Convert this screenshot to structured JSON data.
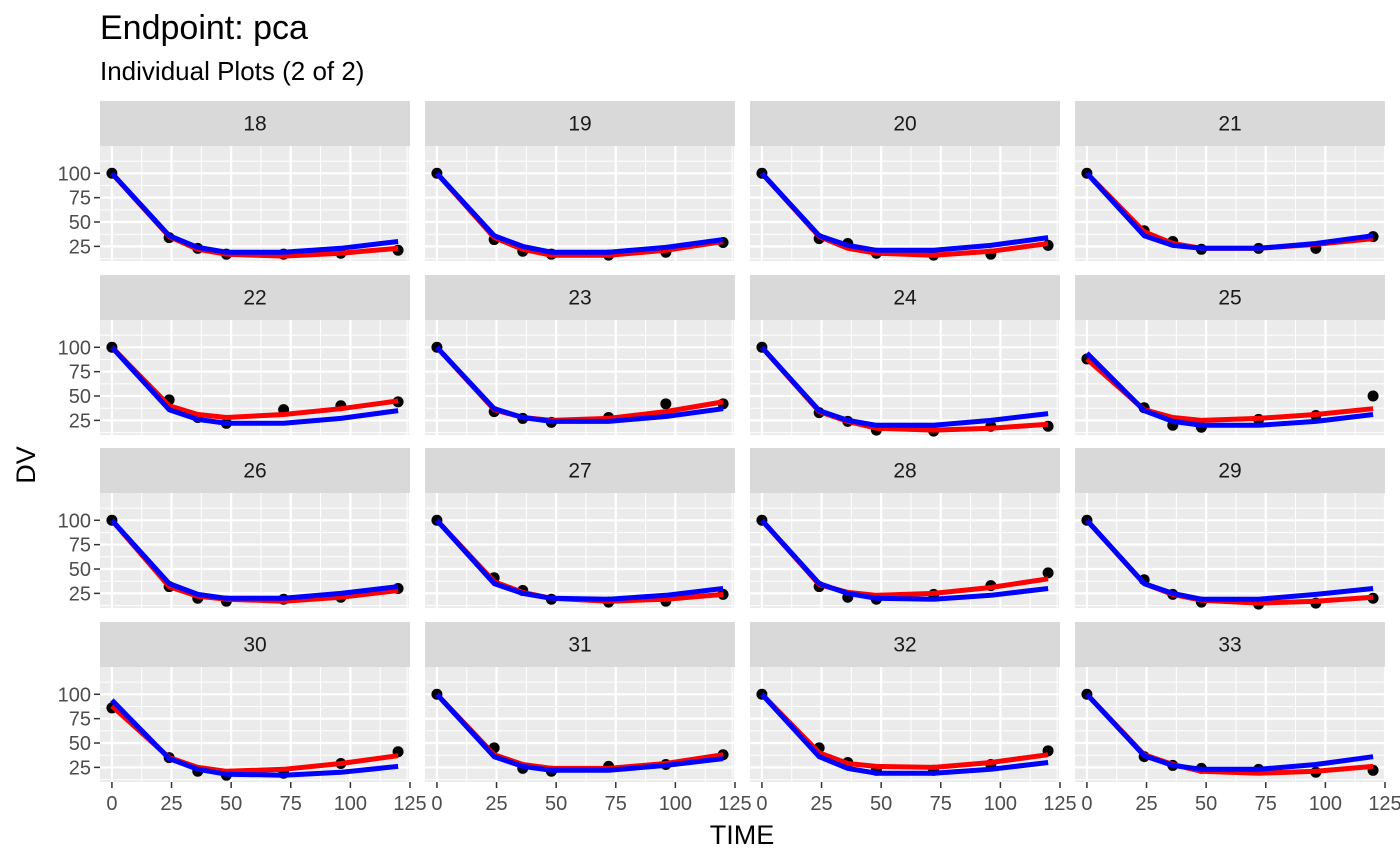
{
  "chart_data": {
    "type": "line",
    "title": "Endpoint:  pca",
    "subtitle": "Individual Plots (2 of 2)",
    "xlabel": "TIME",
    "ylabel": "DV",
    "xlim": [
      -5,
      125
    ],
    "ylim": [
      10,
      128
    ],
    "x_ticks": [
      0,
      25,
      50,
      75,
      100,
      125
    ],
    "y_ticks": [
      25,
      50,
      75,
      100
    ],
    "facets": [
      {
        "id": "18",
        "time": [
          0,
          24,
          36,
          48,
          72,
          96,
          120
        ],
        "dv": [
          100,
          34,
          23,
          17,
          17,
          18,
          21
        ],
        "pred": [
          100,
          35,
          22,
          17,
          15,
          18,
          23
        ],
        "ipred": [
          100,
          36,
          24,
          19,
          19,
          23,
          30
        ]
      },
      {
        "id": "19",
        "time": [
          0,
          24,
          36,
          48,
          72,
          96,
          120
        ],
        "dv": [
          100,
          32,
          20,
          17,
          16,
          19,
          29
        ],
        "pred": [
          100,
          34,
          22,
          16,
          16,
          21,
          30
        ],
        "ipred": [
          100,
          36,
          25,
          19,
          19,
          24,
          32
        ]
      },
      {
        "id": "20",
        "time": [
          0,
          24,
          36,
          48,
          72,
          96,
          120
        ],
        "dv": [
          100,
          33,
          28,
          18,
          16,
          17,
          26
        ],
        "pred": [
          100,
          35,
          23,
          18,
          16,
          20,
          28
        ],
        "ipred": [
          100,
          36,
          26,
          21,
          21,
          26,
          34
        ]
      },
      {
        "id": "21",
        "time": [
          0,
          24,
          36,
          48,
          72,
          96,
          120
        ],
        "dv": [
          100,
          41,
          30,
          22,
          23,
          23,
          35
        ],
        "pred": [
          100,
          40,
          28,
          23,
          23,
          27,
          33
        ],
        "ipred": [
          100,
          36,
          26,
          23,
          23,
          28,
          36
        ]
      },
      {
        "id": "22",
        "time": [
          0,
          24,
          36,
          48,
          72,
          96,
          120
        ],
        "dv": [
          100,
          46,
          28,
          22,
          36,
          40,
          44
        ],
        "pred": [
          100,
          40,
          31,
          28,
          31,
          37,
          45
        ],
        "ipred": [
          100,
          36,
          26,
          22,
          22,
          27,
          35
        ]
      },
      {
        "id": "23",
        "time": [
          0,
          24,
          36,
          48,
          72,
          96,
          120
        ],
        "dv": [
          100,
          34,
          27,
          23,
          28,
          42,
          42
        ],
        "pred": [
          100,
          36,
          28,
          25,
          27,
          34,
          44
        ],
        "ipred": [
          100,
          37,
          28,
          24,
          24,
          29,
          37
        ]
      },
      {
        "id": "24",
        "time": [
          0,
          24,
          36,
          48,
          72,
          96,
          120
        ],
        "dv": [
          100,
          33,
          24,
          15,
          14,
          19,
          19
        ],
        "pred": [
          100,
          34,
          24,
          17,
          15,
          17,
          21
        ],
        "ipred": [
          100,
          35,
          25,
          20,
          20,
          25,
          32
        ]
      },
      {
        "id": "25",
        "time": [
          0,
          24,
          36,
          48,
          72,
          96,
          120
        ],
        "dv": [
          88,
          38,
          20,
          18,
          26,
          30,
          50
        ],
        "pred": [
          88,
          36,
          28,
          25,
          27,
          31,
          37
        ],
        "ipred": [
          94,
          35,
          24,
          20,
          20,
          24,
          31
        ]
      },
      {
        "id": "26",
        "time": [
          0,
          24,
          36,
          48,
          72,
          96,
          120
        ],
        "dv": [
          100,
          32,
          20,
          17,
          19,
          21,
          30
        ],
        "pred": [
          100,
          32,
          22,
          19,
          17,
          21,
          28
        ],
        "ipred": [
          100,
          35,
          24,
          20,
          20,
          25,
          32
        ]
      },
      {
        "id": "27",
        "time": [
          0,
          24,
          36,
          48,
          72,
          96,
          120
        ],
        "dv": [
          100,
          41,
          28,
          19,
          16,
          17,
          24
        ],
        "pred": [
          100,
          37,
          26,
          20,
          17,
          19,
          24
        ],
        "ipred": [
          100,
          35,
          25,
          20,
          19,
          23,
          30
        ]
      },
      {
        "id": "28",
        "time": [
          0,
          24,
          36,
          48,
          72,
          96,
          120
        ],
        "dv": [
          100,
          32,
          21,
          19,
          24,
          33,
          46
        ],
        "pred": [
          100,
          34,
          26,
          23,
          25,
          31,
          40
        ],
        "ipred": [
          100,
          35,
          25,
          20,
          19,
          23,
          30
        ]
      },
      {
        "id": "29",
        "time": [
          0,
          24,
          36,
          48,
          72,
          96,
          120
        ],
        "dv": [
          100,
          39,
          24,
          16,
          14,
          15,
          20
        ],
        "pred": [
          100,
          35,
          24,
          18,
          15,
          17,
          21
        ],
        "ipred": [
          100,
          35,
          25,
          19,
          19,
          24,
          30
        ]
      },
      {
        "id": "30",
        "time": [
          0,
          24,
          36,
          48,
          72,
          96,
          120
        ],
        "dv": [
          86,
          35,
          21,
          17,
          19,
          29,
          41
        ],
        "pred": [
          88,
          35,
          25,
          21,
          23,
          29,
          37
        ],
        "ipred": [
          94,
          34,
          23,
          18,
          17,
          20,
          26
        ]
      },
      {
        "id": "31",
        "time": [
          0,
          24,
          36,
          48,
          72,
          96,
          120
        ],
        "dv": [
          100,
          45,
          24,
          21,
          26,
          28,
          38
        ],
        "pred": [
          100,
          38,
          28,
          24,
          24,
          29,
          38
        ],
        "ipred": [
          100,
          36,
          26,
          22,
          22,
          27,
          34
        ]
      },
      {
        "id": "32",
        "time": [
          0,
          24,
          36,
          48,
          72,
          96,
          120
        ],
        "dv": [
          100,
          45,
          30,
          22,
          22,
          28,
          42
        ],
        "pred": [
          100,
          40,
          29,
          26,
          25,
          30,
          38
        ],
        "ipred": [
          100,
          36,
          24,
          19,
          19,
          23,
          30
        ]
      },
      {
        "id": "33",
        "time": [
          0,
          24,
          36,
          48,
          72,
          96,
          120
        ],
        "dv": [
          100,
          36,
          27,
          24,
          23,
          20,
          22
        ],
        "pred": [
          100,
          38,
          28,
          21,
          19,
          21,
          26
        ],
        "ipred": [
          100,
          37,
          27,
          23,
          23,
          28,
          36
        ]
      }
    ],
    "colors": {
      "panel_bg": "#ebebeb",
      "grid": "#ffffff",
      "strip_bg": "#d9d9d9",
      "points": "#000000",
      "pred": "#ff0000",
      "ipred": "#0000ff"
    }
  }
}
